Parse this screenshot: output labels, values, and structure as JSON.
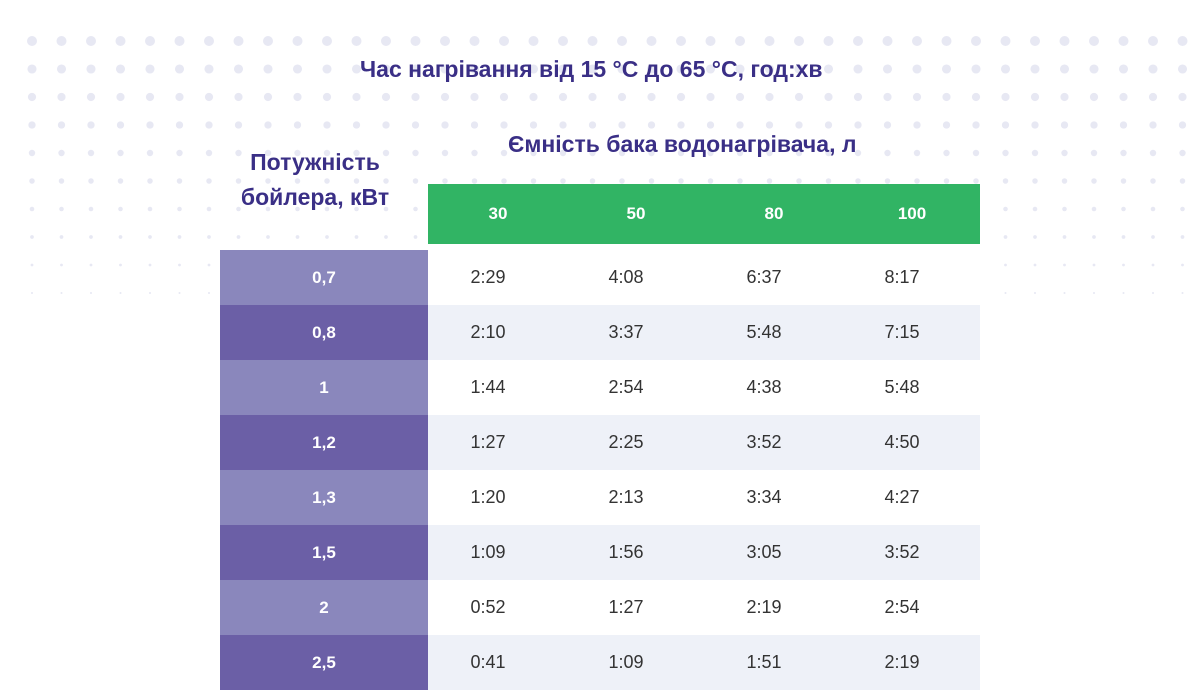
{
  "title": "Час нагрівання від 15 °C до 65 °C, год:хв",
  "row_header": "Потужність бойлера, кВт",
  "column_header": "Ємність бака водонагрівача, л",
  "colors": {
    "title": "#3a2f86",
    "header_band": "#31b464",
    "row_label_light": "#8a87bc",
    "row_label_dark": "#6b5fa6",
    "row_stripe": "#eef1f8"
  },
  "chart_data": {
    "type": "table",
    "title": "Час нагрівання від 15 °C до 65 °C, год:хв",
    "row_header": "Потужність бойлера, кВт",
    "column_header": "Ємність бака водонагрівача, л",
    "columns": [
      "30",
      "50",
      "80",
      "100"
    ],
    "rows": [
      {
        "label": "0,7",
        "values": [
          "2:29",
          "4:08",
          "6:37",
          "8:17"
        ]
      },
      {
        "label": "0,8",
        "values": [
          "2:10",
          "3:37",
          "5:48",
          "7:15"
        ]
      },
      {
        "label": "1",
        "values": [
          "1:44",
          "2:54",
          "4:38",
          "5:48"
        ]
      },
      {
        "label": "1,2",
        "values": [
          "1:27",
          "2:25",
          "3:52",
          "4:50"
        ]
      },
      {
        "label": "1,3",
        "values": [
          "1:20",
          "2:13",
          "3:34",
          "4:27"
        ]
      },
      {
        "label": "1,5",
        "values": [
          "1:09",
          "1:56",
          "3:05",
          "3:52"
        ]
      },
      {
        "label": "2",
        "values": [
          "0:52",
          "1:27",
          "2:19",
          "2:54"
        ]
      },
      {
        "label": "2,5",
        "values": [
          "0:41",
          "1:09",
          "1:51",
          "2:19"
        ]
      }
    ]
  }
}
